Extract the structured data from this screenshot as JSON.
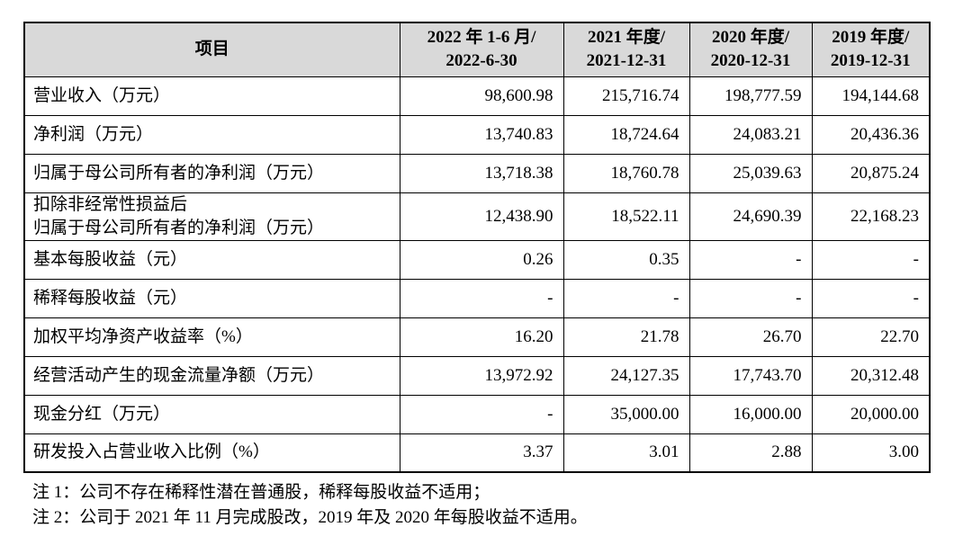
{
  "table": {
    "header": {
      "item_label": "项目",
      "columns": [
        {
          "line1": "2022 年 1-6 月/",
          "line2": "2022-6-30"
        },
        {
          "line1": "2021 年度/",
          "line2": "2021-12-31"
        },
        {
          "line1": "2020 年度/",
          "line2": "2020-12-31"
        },
        {
          "line1": "2019 年度/",
          "line2": "2019-12-31"
        }
      ]
    },
    "rows": [
      {
        "label": "营业收入（万元）",
        "values": [
          "98,600.98",
          "215,716.74",
          "198,777.59",
          "194,144.68"
        ]
      },
      {
        "label": "净利润（万元）",
        "values": [
          "13,740.83",
          "18,724.64",
          "24,083.21",
          "20,436.36"
        ]
      },
      {
        "label": "归属于母公司所有者的净利润（万元）",
        "values": [
          "13,718.38",
          "18,760.78",
          "25,039.63",
          "20,875.24"
        ]
      },
      {
        "label": "扣除非经常性损益后\n归属于母公司所有者的净利润（万元）",
        "values": [
          "12,438.90",
          "18,522.11",
          "24,690.39",
          "22,168.23"
        ]
      },
      {
        "label": "基本每股收益（元）",
        "values": [
          "0.26",
          "0.35",
          "-",
          "-"
        ]
      },
      {
        "label": "稀释每股收益（元）",
        "values": [
          "-",
          "-",
          "-",
          "-"
        ]
      },
      {
        "label": "加权平均净资产收益率（%）",
        "values": [
          "16.20",
          "21.78",
          "26.70",
          "22.70"
        ]
      },
      {
        "label": "经营活动产生的现金流量净额（万元）",
        "values": [
          "13,972.92",
          "24,127.35",
          "17,743.70",
          "20,312.48"
        ]
      },
      {
        "label": "现金分红（万元）",
        "values": [
          "-",
          "35,000.00",
          "16,000.00",
          "20,000.00"
        ]
      },
      {
        "label": "研发投入占营业收入比例（%）",
        "values": [
          "3.37",
          "3.01",
          "2.88",
          "3.00"
        ]
      }
    ]
  },
  "notes": [
    "注 1：公司不存在稀释性潜在普通股，稀释每股收益不适用；",
    "注 2：公司于 2021 年 11 月完成股改，2019 年及 2020 年每股收益不适用。"
  ],
  "colors": {
    "header_bg": "#d9d9d9",
    "border": "#000000",
    "text": "#000000",
    "page_bg": "#ffffff"
  }
}
